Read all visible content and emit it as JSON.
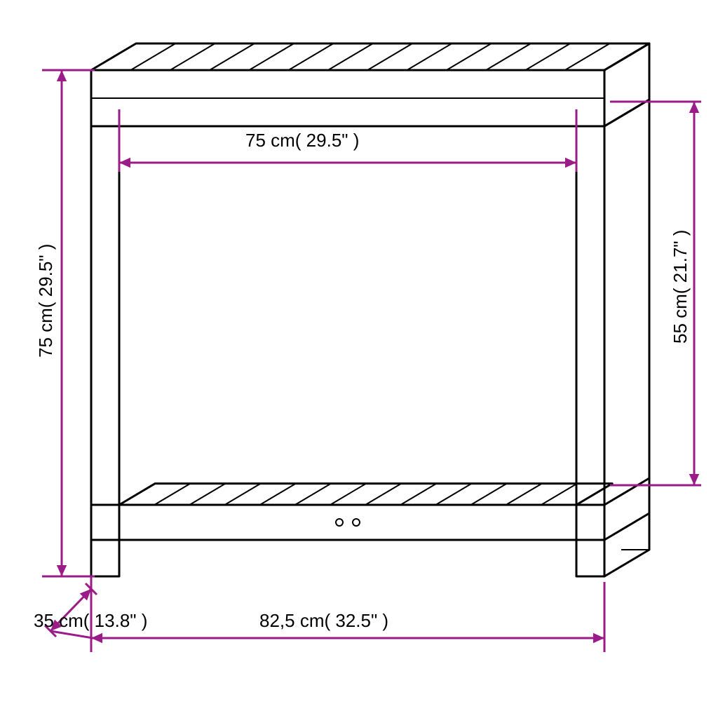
{
  "colors": {
    "outline": "#000000",
    "dimension": "#9b1b88",
    "text": "#000000",
    "background": "#ffffff"
  },
  "labels": {
    "inner_width": "75 cm( 29.5\" )",
    "total_height": "75 cm( 29.5\" )",
    "depth": "35 cm( 13.8\" )",
    "total_width": "82,5 cm( 32.5\" )",
    "shelf_height": "55 cm( 21.7\" )"
  },
  "arrow_size": 16
}
